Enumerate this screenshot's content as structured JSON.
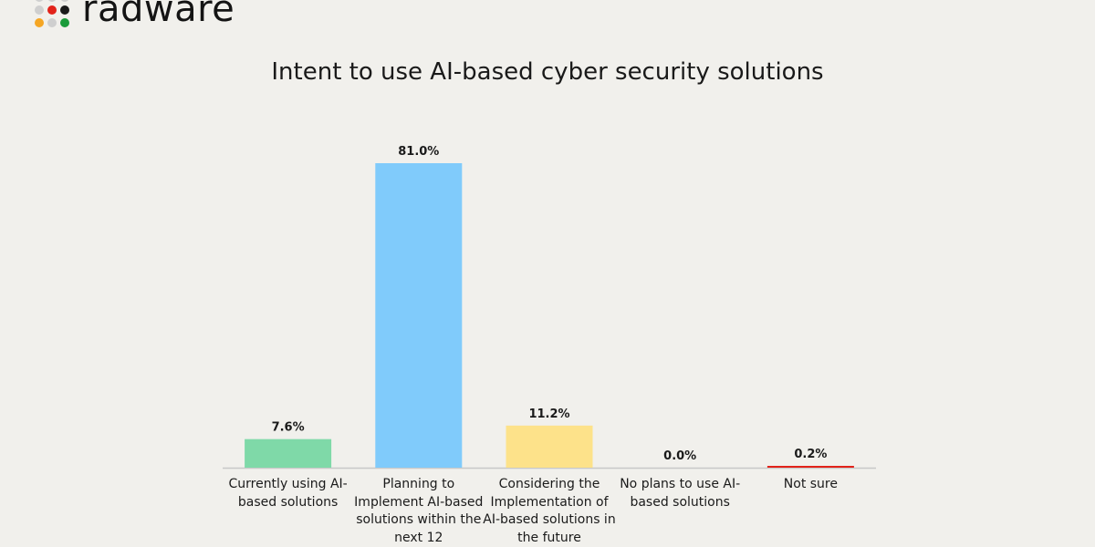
{
  "brand": {
    "name": "radware",
    "dot_colors": [
      "#cfcfcf",
      "#cfcfcf",
      "#cfcfcf",
      "#cfcfcf",
      "#e2231a",
      "#1a1a1a",
      "#f5a623",
      "#cfcfcf",
      "#1a9b3a"
    ]
  },
  "chart_data": {
    "type": "bar",
    "title": "Intent to use AI-based cyber security solutions",
    "xlabel": "",
    "ylabel": "",
    "ylim": [
      0,
      81
    ],
    "grid": false,
    "categories": [
      "Currently using AI-based solutions",
      "Planning to Implement AI-based solutions within the next 12",
      "Considering the Implementation of AI-based solutions in the future",
      "No plans to use AI-based solutions",
      "Not sure"
    ],
    "values": [
      7.6,
      81.0,
      11.2,
      0.0,
      0.2
    ],
    "data_labels": [
      "7.6%",
      "81.0%",
      "11.2%",
      "0.0%",
      "0.2%"
    ],
    "colors": [
      "#7fd9a8",
      "#80cbfb",
      "#fde28a",
      "#cccccc",
      "#e2231a"
    ]
  }
}
